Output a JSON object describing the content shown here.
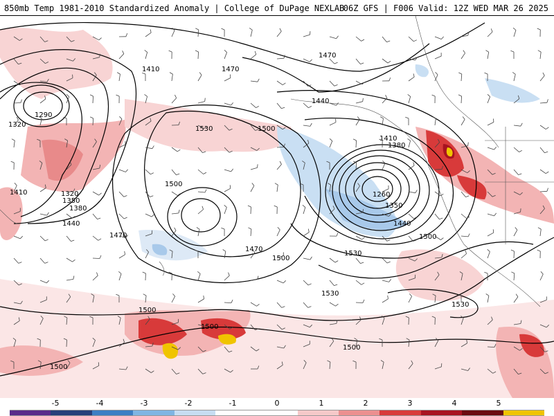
{
  "header": {
    "left_title": "850mb Temp 1981-2010 Standardized Anomaly | College of DuPage NEXLAB",
    "right_title": "06Z GFS | F006 Valid: 12Z WED MAR 26 2025"
  },
  "map": {
    "contour_labels": [
      {
        "text": "1410",
        "id": "c1"
      },
      {
        "text": "1470",
        "id": "c2"
      },
      {
        "text": "1290",
        "id": "c3"
      },
      {
        "text": "1320",
        "id": "c4"
      },
      {
        "text": "1530",
        "id": "c5"
      },
      {
        "text": "1500",
        "id": "c6"
      },
      {
        "text": "1440",
        "id": "c7"
      },
      {
        "text": "1410",
        "id": "c8"
      },
      {
        "text": "1380",
        "id": "c9"
      },
      {
        "text": "1470",
        "id": "c10"
      },
      {
        "text": "1500",
        "id": "c11"
      },
      {
        "text": "1320",
        "id": "c12"
      },
      {
        "text": "1350",
        "id": "c13"
      },
      {
        "text": "1380",
        "id": "c14"
      },
      {
        "text": "1410",
        "id": "c15"
      },
      {
        "text": "1440",
        "id": "c16"
      },
      {
        "text": "1470",
        "id": "c17"
      },
      {
        "text": "1260",
        "id": "c18"
      },
      {
        "text": "1350",
        "id": "c19"
      },
      {
        "text": "1440",
        "id": "c20"
      },
      {
        "text": "1500",
        "id": "c21"
      },
      {
        "text": "1470",
        "id": "c22"
      },
      {
        "text": "1500",
        "id": "c23"
      },
      {
        "text": "1530",
        "id": "c24"
      },
      {
        "text": "1530",
        "id": "c25"
      },
      {
        "text": "1530",
        "id": "c26"
      },
      {
        "text": "1500",
        "id": "c27"
      },
      {
        "text": "1500",
        "id": "c28"
      },
      {
        "text": "1500",
        "id": "c29"
      },
      {
        "text": "1500",
        "id": "c30"
      }
    ]
  },
  "colorbar": {
    "ticks": [
      "-5",
      "-4",
      "-3",
      "-2",
      "-1",
      "0",
      "1",
      "2",
      "3",
      "4",
      "5"
    ],
    "colors": [
      "#5a2a8a",
      "#27407a",
      "#3c7fc4",
      "#7fb5e3",
      "#c7ddf2",
      "#ffffff",
      "#ffffff",
      "#f6c9c9",
      "#ec9090",
      "#d83a3a",
      "#a81320",
      "#6b0a10",
      "#f0c400"
    ]
  }
}
